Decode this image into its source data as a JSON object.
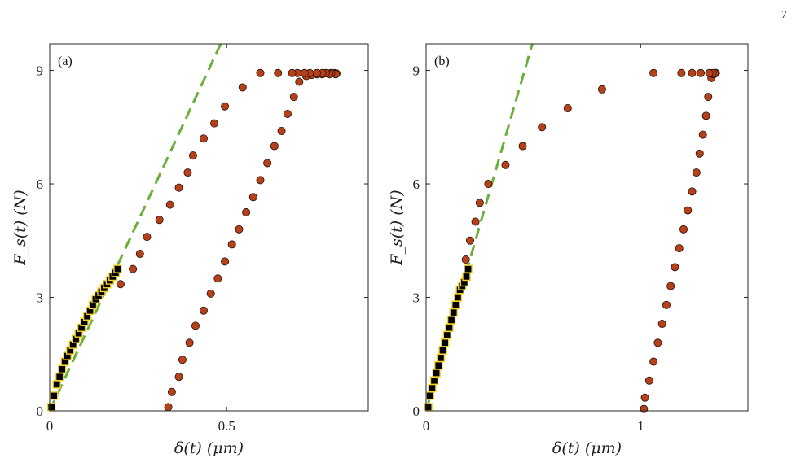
{
  "page_number": "7",
  "chart_data": [
    {
      "type": "scatter",
      "panel_label": "(a)",
      "xlabel": "δ(t) (μm)",
      "ylabel": "F_s(t) (N)",
      "xlim": [
        0,
        0.9
      ],
      "ylim": [
        0,
        9.7
      ],
      "xticks": [
        0,
        0.5
      ],
      "xtick_labels": [
        "0",
        "0.5"
      ],
      "yticks": [
        0,
        3,
        6,
        9
      ],
      "ytick_labels": [
        "0",
        "3",
        "6",
        "9"
      ],
      "grid": false,
      "colors": {
        "circles": "#B5411A",
        "squares": "#000000",
        "square_edge": "#F2D22E",
        "fit_line": "#6BAE3A",
        "axes": "#262626"
      },
      "fit_line": {
        "style": "dashed",
        "x": [
          0,
          0.483
        ],
        "y": [
          0,
          9.7
        ]
      },
      "series": [
        {
          "marker": "circle",
          "x": [
            0.335,
            0.345,
            0.365,
            0.375,
            0.395,
            0.412,
            0.435,
            0.455,
            0.475,
            0.495,
            0.515,
            0.535,
            0.555,
            0.575,
            0.595,
            0.615,
            0.635,
            0.655,
            0.672,
            0.69,
            0.705,
            0.725,
            0.74,
            0.755,
            0.77,
            0.785,
            0.795,
            0.805,
            0.81,
            0.808,
            0.795,
            0.79,
            0.78,
            0.77,
            0.755,
            0.735,
            0.72,
            0.7,
            0.685,
            0.645,
            0.595,
            0.545,
            0.495,
            0.465,
            0.435,
            0.405,
            0.39,
            0.365,
            0.34,
            0.31,
            0.275,
            0.255,
            0.235,
            0.2
          ],
          "y": [
            0.1,
            0.5,
            0.9,
            1.35,
            1.8,
            2.25,
            2.65,
            3.1,
            3.5,
            3.95,
            4.4,
            4.8,
            5.25,
            5.65,
            6.1,
            6.55,
            7.0,
            7.4,
            7.85,
            8.3,
            8.7,
            8.85,
            8.88,
            8.9,
            8.9,
            8.92,
            8.93,
            8.93,
            8.92,
            8.9,
            8.92,
            8.9,
            8.93,
            8.93,
            8.93,
            8.93,
            8.93,
            8.93,
            8.93,
            8.93,
            8.93,
            8.55,
            8.05,
            7.6,
            7.2,
            6.75,
            6.3,
            5.9,
            5.45,
            5.05,
            4.6,
            4.15,
            3.75,
            3.35
          ]
        },
        {
          "marker": "square",
          "x": [
            0.005,
            0.012,
            0.02,
            0.028,
            0.035,
            0.043,
            0.05,
            0.058,
            0.066,
            0.074,
            0.082,
            0.09,
            0.098,
            0.106,
            0.114,
            0.122,
            0.13,
            0.138,
            0.146,
            0.154,
            0.162,
            0.17,
            0.178,
            0.186,
            0.192
          ],
          "y": [
            0.1,
            0.4,
            0.7,
            0.9,
            1.1,
            1.3,
            1.45,
            1.6,
            1.75,
            1.9,
            2.05,
            2.2,
            2.35,
            2.5,
            2.65,
            2.8,
            2.95,
            3.05,
            3.15,
            3.25,
            3.35,
            3.45,
            3.55,
            3.65,
            3.75
          ]
        }
      ]
    },
    {
      "type": "scatter",
      "panel_label": "(b)",
      "xlabel": "δ(t) (μm)",
      "ylabel": "F_s(t) (N)",
      "xlim": [
        0,
        1.5
      ],
      "ylim": [
        0,
        9.7
      ],
      "xticks": [
        0,
        1
      ],
      "xtick_labels": [
        "0",
        "1"
      ],
      "yticks": [
        0,
        3,
        6,
        9
      ],
      "ytick_labels": [
        "0",
        "3",
        "6",
        "9"
      ],
      "grid": false,
      "colors": {
        "circles": "#B5411A",
        "squares": "#000000",
        "square_edge": "#F2D22E",
        "fit_line": "#6BAE3A",
        "axes": "#262626"
      },
      "fit_line": {
        "style": "dashed",
        "x": [
          0,
          0.495
        ],
        "y": [
          0,
          9.7
        ]
      },
      "series": [
        {
          "marker": "circle",
          "x": [
            1.015,
            1.02,
            1.04,
            1.06,
            1.08,
            1.1,
            1.12,
            1.14,
            1.16,
            1.18,
            1.2,
            1.22,
            1.24,
            1.26,
            1.275,
            1.29,
            1.305,
            1.315,
            1.33,
            1.34,
            1.345,
            1.35,
            1.35,
            1.345,
            1.335,
            1.32,
            1.28,
            1.24,
            1.19,
            1.06,
            0.82,
            0.66,
            0.54,
            0.45,
            0.37,
            0.29,
            0.25,
            0.23,
            0.205,
            0.185
          ],
          "y": [
            0.05,
            0.35,
            0.8,
            1.3,
            1.8,
            2.3,
            2.8,
            3.3,
            3.8,
            4.3,
            4.8,
            5.3,
            5.8,
            6.3,
            6.8,
            7.3,
            7.8,
            8.3,
            8.8,
            8.9,
            8.93,
            8.93,
            8.93,
            8.93,
            8.93,
            8.93,
            8.93,
            8.93,
            8.93,
            8.93,
            8.5,
            8.0,
            7.5,
            7.0,
            6.5,
            6.0,
            5.5,
            5.0,
            4.5,
            4.0
          ]
        },
        {
          "marker": "square",
          "x": [
            0.01,
            0.018,
            0.028,
            0.038,
            0.048,
            0.058,
            0.068,
            0.078,
            0.088,
            0.098,
            0.108,
            0.118,
            0.128,
            0.138,
            0.148,
            0.158,
            0.168,
            0.178,
            0.188,
            0.196
          ],
          "y": [
            0.1,
            0.4,
            0.6,
            0.8,
            1.0,
            1.2,
            1.4,
            1.6,
            1.8,
            2.0,
            2.2,
            2.4,
            2.6,
            2.8,
            3.0,
            3.2,
            3.3,
            3.4,
            3.55,
            3.75
          ]
        }
      ]
    }
  ]
}
